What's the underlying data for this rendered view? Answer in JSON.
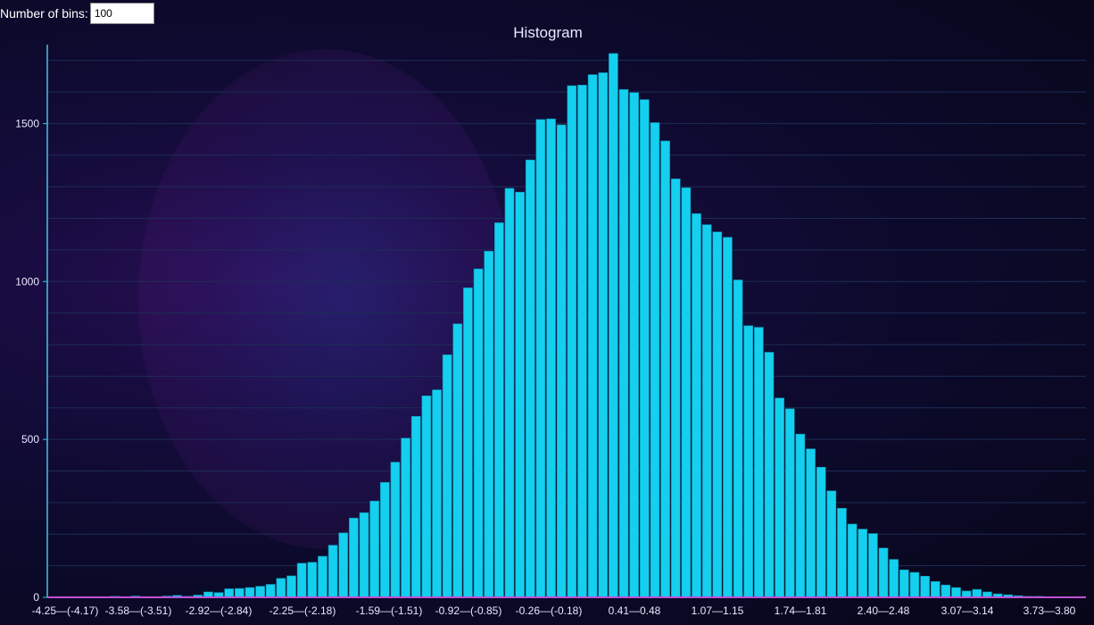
{
  "controls": {
    "bins_label": "Number of bins:",
    "bins_value": "100"
  },
  "colors": {
    "bar": "#14d0ee",
    "bar_edge": "#0b90b0",
    "axis": "#3fc6e0",
    "grid": "#1e2c55"
  },
  "chart_data": {
    "type": "bar",
    "title": "Histogram",
    "xlabel": "",
    "ylabel": "",
    "ylim": [
      0,
      1750
    ],
    "grid": true,
    "y_ticks": [
      0,
      500,
      1000,
      1500
    ],
    "x_tick_labels": [
      "-4.25—(-4.17)",
      "-3.58—(-3.51)",
      "-2.92—(-2.84)",
      "-2.25—(-2.18)",
      "-1.59—(-1.51)",
      "-0.92—(-0.85)",
      "-0.26—(-0.18)",
      "0.41—0.48",
      "1.07—1.15",
      "1.74—1.81",
      "2.40—2.48",
      "3.07—3.14",
      "3.73—3.80"
    ],
    "values": [
      1,
      0,
      1,
      1,
      2,
      1,
      3,
      2,
      4,
      1,
      2,
      4,
      6,
      3,
      7,
      17,
      15,
      27,
      28,
      31,
      35,
      41,
      60,
      68,
      108,
      111,
      130,
      165,
      204,
      251,
      268,
      305,
      364,
      428,
      504,
      573,
      638,
      657,
      768,
      866,
      980,
      1040,
      1096,
      1186,
      1295,
      1283,
      1385,
      1513,
      1515,
      1496,
      1620,
      1622,
      1655,
      1661,
      1722,
      1608,
      1598,
      1576,
      1503,
      1445,
      1325,
      1297,
      1215,
      1180,
      1157,
      1140,
      1005,
      860,
      855,
      776,
      631,
      597,
      517,
      470,
      412,
      337,
      282,
      232,
      216,
      202,
      156,
      120,
      87,
      79,
      67,
      50,
      39,
      31,
      20,
      25,
      17,
      11,
      8,
      5,
      3,
      3,
      2,
      1,
      1,
      1
    ]
  }
}
